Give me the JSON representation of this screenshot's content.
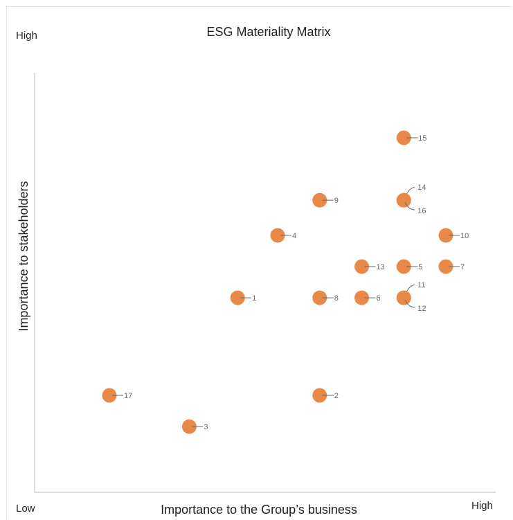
{
  "chart_data": {
    "type": "scatter",
    "title": "ESG Materiality Matrix",
    "xlabel": "Importance to the Group’s business",
    "ylabel": "Importance to stakeholders",
    "corner_labels": {
      "y_high": "High",
      "x_low": "Low",
      "x_high": "High"
    },
    "xlim": [
      0,
      10
    ],
    "ylim": [
      0,
      10
    ],
    "grid": false,
    "legend": "none",
    "point_color": "#E8894A",
    "points": [
      {
        "label": "1",
        "x": 5.05,
        "y": 5.0
      },
      {
        "label": "2",
        "x": 7.0,
        "y": 2.5
      },
      {
        "label": "3",
        "x": 3.9,
        "y": 1.7
      },
      {
        "label": "4",
        "x": 6.0,
        "y": 6.6
      },
      {
        "label": "5",
        "x": 9.0,
        "y": 5.8
      },
      {
        "label": "6",
        "x": 8.0,
        "y": 5.0
      },
      {
        "label": "7",
        "x": 10.0,
        "y": 5.8
      },
      {
        "label": "8",
        "x": 7.0,
        "y": 5.0
      },
      {
        "label": "9",
        "x": 7.0,
        "y": 7.5
      },
      {
        "label": "10",
        "x": 10.0,
        "y": 6.6
      },
      {
        "label": "11",
        "x": 9.0,
        "y": 5.0
      },
      {
        "label": "12",
        "x": 9.0,
        "y": 5.0
      },
      {
        "label": "13",
        "x": 8.0,
        "y": 5.8
      },
      {
        "label": "14",
        "x": 9.0,
        "y": 7.5
      },
      {
        "label": "15",
        "x": 9.0,
        "y": 9.1
      },
      {
        "label": "16",
        "x": 9.0,
        "y": 7.5
      },
      {
        "label": "17",
        "x": 2.0,
        "y": 2.5
      }
    ]
  }
}
